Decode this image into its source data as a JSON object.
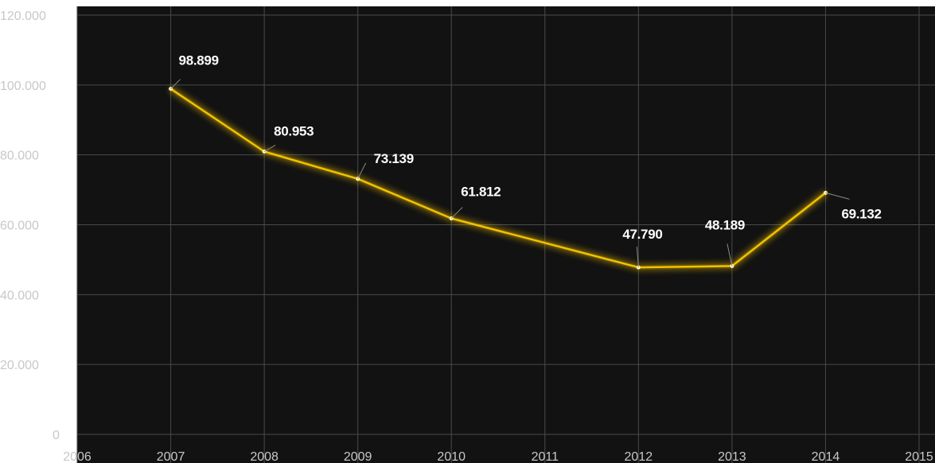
{
  "chart_data": {
    "type": "line",
    "title": "",
    "xlabel": "",
    "ylabel": "",
    "x_ticks": [
      "2006",
      "2007",
      "2008",
      "2009",
      "2010",
      "2011",
      "2012",
      "2013",
      "2014",
      "2015"
    ],
    "y_ticks": [
      "0",
      "20.000",
      "40.000",
      "60.000",
      "80.000",
      "100.000",
      "120.000"
    ],
    "xlim": [
      2006,
      2015
    ],
    "ylim": [
      0,
      120000
    ],
    "grid": true,
    "legend": "none",
    "series": [
      {
        "x": [
          2007,
          2008,
          2009,
          2010,
          2012,
          2013,
          2014
        ],
        "values": [
          98899,
          80953,
          73139,
          61812,
          47790,
          48189,
          69132
        ],
        "labels": [
          "98.899",
          "80.953",
          "73.139",
          "61.812",
          "47.790",
          "48.189",
          "69.132"
        ],
        "color": "#f2c200"
      }
    ],
    "background_color": "#121212",
    "grid_color": "#4a4a4a"
  }
}
